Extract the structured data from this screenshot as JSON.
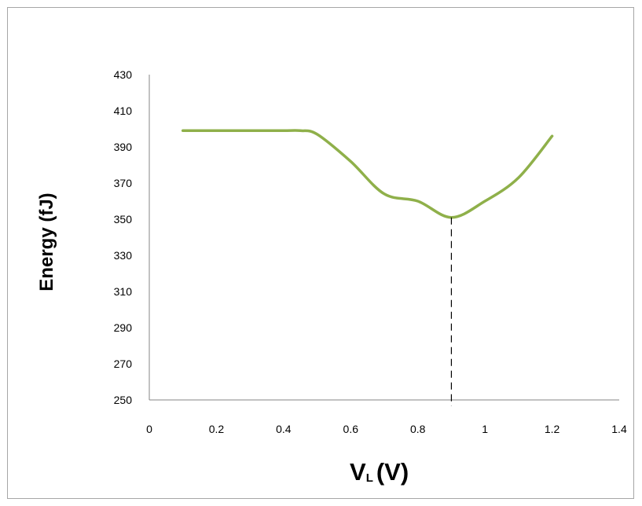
{
  "chart_data": {
    "type": "line",
    "title": "",
    "xlabel_main": "V",
    "xlabel_sub": "L",
    "xlabel_unit": "(V)",
    "ylabel": "Energy (fJ)",
    "xlim": [
      0,
      1.4
    ],
    "ylim": [
      250,
      430
    ],
    "x_ticks": [
      "0",
      "0.2",
      "0.4",
      "0.6",
      "0.8",
      "1",
      "1.2",
      "1.4"
    ],
    "y_ticks": [
      "250",
      "270",
      "290",
      "310",
      "330",
      "350",
      "370",
      "390",
      "410",
      "430"
    ],
    "grid": false,
    "legend": "none",
    "series": [
      {
        "color": "#8fb04a",
        "x": [
          0.1,
          0.3,
          0.4,
          0.45,
          0.5,
          0.6,
          0.7,
          0.8,
          0.9,
          1.0,
          1.1,
          1.2
        ],
        "y": [
          399,
          399,
          399,
          399,
          397,
          382,
          364,
          360,
          351,
          360,
          373,
          396
        ]
      }
    ],
    "annotation": {
      "type": "vertical-dashed-line",
      "x": 0.9,
      "y": 351
    }
  }
}
